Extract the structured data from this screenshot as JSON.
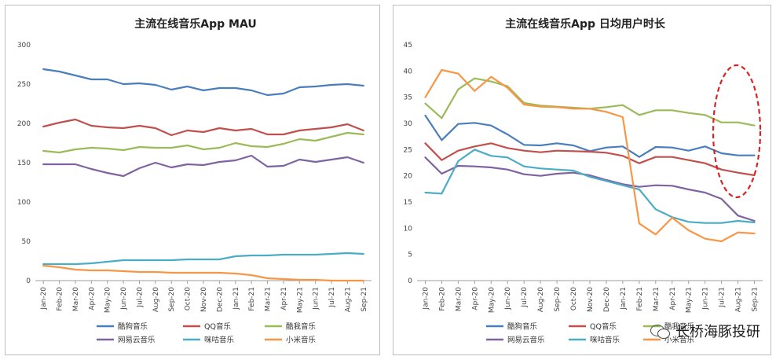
{
  "chart_data": [
    {
      "type": "line",
      "title": "主流在线音乐App MAU",
      "xlabel": "",
      "ylabel": "",
      "ylim": [
        0,
        300
      ],
      "yticks": [
        0,
        50,
        100,
        150,
        200,
        250,
        300
      ],
      "grid": false,
      "legend_position": "bottom",
      "categories": [
        "Jan-20",
        "Feb-20",
        "Mar-20",
        "Apr-20",
        "May-20",
        "Jun-20",
        "Jul-20",
        "Aug-20",
        "Sep-20",
        "Oct-20",
        "Nov-20",
        "Dec-20",
        "Jan-21",
        "Feb-21",
        "Mar-21",
        "Apr-21",
        "May-21",
        "Jun-21",
        "Jul-21",
        "Aug-21",
        "Sep-21"
      ],
      "series": [
        {
          "name": "酷狗音乐",
          "color": "#4a7ebb",
          "values": [
            269,
            266,
            261,
            256,
            256,
            250,
            251,
            249,
            243,
            247,
            242,
            245,
            245,
            242,
            236,
            238,
            246,
            247,
            249,
            250,
            248
          ]
        },
        {
          "name": "QQ音乐",
          "color": "#c0504d",
          "values": [
            196,
            201,
            205,
            197,
            195,
            194,
            197,
            194,
            185,
            191,
            189,
            194,
            191,
            193,
            186,
            186,
            191,
            193,
            195,
            199,
            191
          ]
        },
        {
          "name": "酷我音乐",
          "color": "#9bbb59",
          "values": [
            165,
            163,
            167,
            169,
            168,
            166,
            170,
            169,
            169,
            172,
            167,
            169,
            175,
            171,
            170,
            174,
            180,
            178,
            183,
            188,
            186
          ]
        },
        {
          "name": "网易云音乐",
          "color": "#7f63a0",
          "values": [
            148,
            148,
            148,
            142,
            137,
            133,
            143,
            150,
            144,
            148,
            147,
            151,
            153,
            159,
            145,
            146,
            154,
            151,
            154,
            157,
            150
          ]
        },
        {
          "name": "咪咕音乐",
          "color": "#4bacc6",
          "values": [
            21,
            21,
            21,
            22,
            24,
            26,
            26,
            26,
            26,
            27,
            27,
            27,
            31,
            32,
            32,
            33,
            33,
            33,
            34,
            35,
            34
          ]
        },
        {
          "name": "小米音乐",
          "color": "#f79646",
          "values": [
            19,
            17,
            14,
            13,
            13,
            12,
            11,
            11,
            10,
            10,
            10,
            10,
            9,
            7,
            3,
            2,
            1,
            1,
            0,
            0,
            0
          ]
        }
      ]
    },
    {
      "type": "line",
      "title": "主流在线音乐App 日均用户时长",
      "xlabel": "",
      "ylabel": "",
      "ylim": [
        0,
        45
      ],
      "yticks": [
        0,
        5,
        10,
        15,
        20,
        25,
        30,
        35,
        40,
        45
      ],
      "grid": false,
      "legend_position": "bottom",
      "annotation": "red dashed ellipse highlighting Jul-21 to Sep-21",
      "categories": [
        "Jan-20",
        "Feb-20",
        "Mar-20",
        "Apr-20",
        "May-20",
        "Jun-20",
        "Jul-20",
        "Aug-20",
        "Sep-20",
        "Oct-20",
        "Nov-20",
        "Dec-20",
        "Jan-21",
        "Feb-21",
        "Mar-21",
        "Apr-21",
        "May-21",
        "Jun-21",
        "Jul-21",
        "Aug-21",
        "Sep-21"
      ],
      "series": [
        {
          "name": "酷狗音乐",
          "color": "#4a7ebb",
          "values": [
            31.5,
            26.8,
            29.9,
            30.1,
            29.6,
            27.9,
            25.9,
            25.8,
            26.2,
            25.8,
            24.7,
            25.4,
            25.6,
            23.6,
            25.5,
            25.4,
            24.8,
            25.6,
            24.3,
            23.9,
            23.9
          ]
        },
        {
          "name": "QQ音乐",
          "color": "#c0504d",
          "values": [
            26.2,
            23.0,
            24.8,
            25.6,
            26.2,
            25.3,
            24.8,
            24.5,
            24.8,
            24.7,
            24.6,
            24.4,
            23.8,
            22.4,
            23.6,
            23.6,
            23.0,
            22.4,
            21.2,
            20.6,
            20.1
          ]
        },
        {
          "name": "酷我音乐",
          "color": "#9bbb59",
          "values": [
            33.8,
            31.0,
            36.5,
            38.6,
            38.0,
            37.1,
            33.9,
            33.4,
            33.2,
            33.0,
            32.8,
            33.1,
            33.5,
            31.6,
            32.5,
            32.5,
            32.0,
            31.6,
            30.2,
            30.2,
            29.6
          ]
        },
        {
          "name": "网易云音乐",
          "color": "#7f63a0",
          "values": [
            23.5,
            20.4,
            21.9,
            21.8,
            21.6,
            21.2,
            20.3,
            20.0,
            20.4,
            20.6,
            20.1,
            19.2,
            18.4,
            17.9,
            18.2,
            18.1,
            17.4,
            16.8,
            15.6,
            12.4,
            11.4
          ]
        },
        {
          "name": "咪咕音乐",
          "color": "#4bacc6",
          "values": [
            16.8,
            16.6,
            22.8,
            25.0,
            23.8,
            23.5,
            21.8,
            21.4,
            21.2,
            21.0,
            19.8,
            19.0,
            18.2,
            17.4,
            13.6,
            12.1,
            11.2,
            11.0,
            11.0,
            11.4,
            11.1
          ]
        },
        {
          "name": "小米音乐",
          "color": "#f79646",
          "values": [
            35.0,
            40.2,
            39.5,
            36.2,
            38.9,
            36.8,
            33.6,
            33.2,
            33.1,
            32.8,
            32.8,
            32.2,
            31.2,
            10.9,
            8.8,
            12.0,
            9.6,
            8.0,
            7.5,
            9.2,
            9.0
          ]
        }
      ]
    }
  ],
  "brand_watermark": {
    "text": "长桥海豚投研",
    "icon": "wechat-icon"
  }
}
